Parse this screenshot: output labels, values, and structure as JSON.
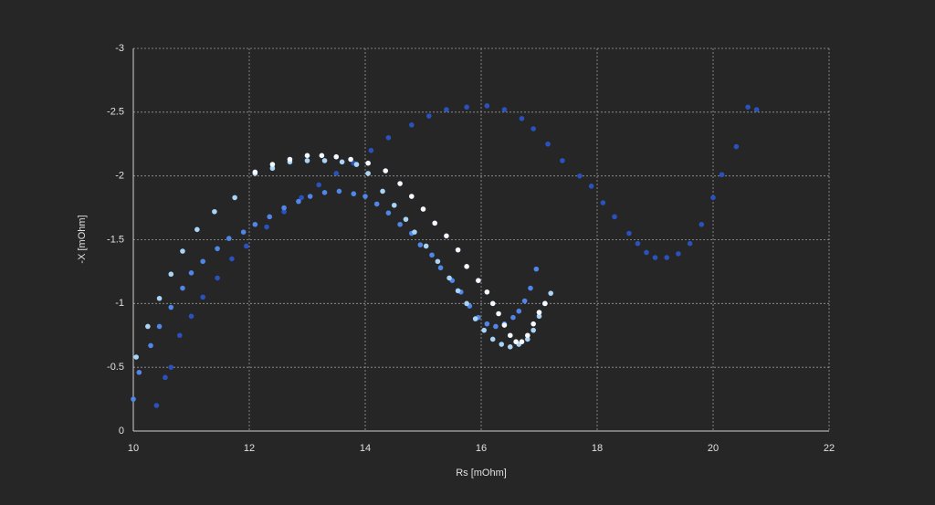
{
  "chart_data": {
    "type": "scatter",
    "x_label": "Rs [mOhm]",
    "y_label": "-X [mOhm]",
    "xlim": [
      10,
      22
    ],
    "xticks": [
      10,
      12,
      14,
      16,
      18,
      20,
      22
    ],
    "ylim": [
      0,
      -3
    ],
    "yticks": [
      0,
      -0.5,
      -1,
      -1.5,
      -2,
      -2.5,
      -3
    ],
    "grid": true,
    "series": [
      {
        "color": "#2a52be",
        "x": [
          10.4,
          10.55,
          10.65,
          10.8,
          11.0,
          11.2,
          11.45,
          11.7,
          11.95,
          12.3,
          12.6,
          12.9,
          13.2,
          13.5,
          13.8,
          14.1,
          14.4,
          14.8,
          15.1,
          15.4,
          15.75,
          16.1,
          16.4,
          16.7,
          16.9,
          17.15,
          17.4,
          17.7,
          17.9,
          18.1,
          18.3,
          18.55,
          18.7,
          18.85,
          19.0,
          19.2,
          19.4,
          19.6,
          19.8,
          20.0,
          20.15,
          20.4,
          20.6,
          20.75
        ],
        "values": [
          -0.2,
          -0.42,
          -0.5,
          -0.75,
          -0.9,
          -1.05,
          -1.2,
          -1.35,
          -1.45,
          -1.6,
          -1.72,
          -1.83,
          -1.93,
          -2.02,
          -2.1,
          -2.2,
          -2.3,
          -2.4,
          -2.47,
          -2.52,
          -2.54,
          -2.55,
          -2.52,
          -2.45,
          -2.37,
          -2.25,
          -2.12,
          -2.0,
          -1.92,
          -1.79,
          -1.68,
          -1.55,
          -1.47,
          -1.4,
          -1.36,
          -1.36,
          -1.39,
          -1.47,
          -1.62,
          -1.83,
          -2.01,
          -2.23,
          -2.54,
          -2.52
        ]
      },
      {
        "color": "#4f86e8",
        "x": [
          10.0,
          10.1,
          10.3,
          10.45,
          10.65,
          10.85,
          11.0,
          11.2,
          11.45,
          11.65,
          11.9,
          12.1,
          12.35,
          12.6,
          12.85,
          13.05,
          13.3,
          13.55,
          13.8,
          14.0,
          14.2,
          14.4,
          14.6,
          14.8,
          14.95,
          15.15,
          15.3,
          15.5,
          15.65,
          15.8,
          15.95,
          16.1,
          16.25,
          16.4,
          16.55,
          16.65,
          16.75,
          16.85,
          16.95
        ],
        "values": [
          -0.25,
          -0.46,
          -0.67,
          -0.82,
          -0.97,
          -1.12,
          -1.24,
          -1.33,
          -1.43,
          -1.51,
          -1.56,
          -1.62,
          -1.68,
          -1.75,
          -1.8,
          -1.84,
          -1.87,
          -1.88,
          -1.86,
          -1.84,
          -1.78,
          -1.71,
          -1.62,
          -1.55,
          -1.46,
          -1.38,
          -1.28,
          -1.18,
          -1.09,
          -0.98,
          -0.89,
          -0.84,
          -0.82,
          -0.84,
          -0.89,
          -0.94,
          -1.02,
          -1.12,
          -1.27
        ]
      },
      {
        "color": "#a9d4f5",
        "x": [
          10.05,
          10.25,
          10.45,
          10.65,
          10.85,
          11.1,
          11.4,
          11.75,
          12.1,
          12.4,
          12.7,
          13.0,
          13.3,
          13.6,
          13.85,
          14.05,
          14.3,
          14.5,
          14.7,
          14.85,
          15.05,
          15.25,
          15.45,
          15.6,
          15.75,
          15.9,
          16.05,
          16.2,
          16.35,
          16.5,
          16.65,
          16.8,
          16.9,
          17.0,
          17.1,
          17.2
        ],
        "values": [
          -0.58,
          -0.82,
          -1.04,
          -1.23,
          -1.41,
          -1.58,
          -1.72,
          -1.83,
          -2.02,
          -2.06,
          -2.11,
          -2.12,
          -2.12,
          -2.11,
          -2.09,
          -2.02,
          -1.88,
          -1.77,
          -1.66,
          -1.56,
          -1.45,
          -1.33,
          -1.2,
          -1.1,
          -1.0,
          -0.88,
          -0.79,
          -0.72,
          -0.68,
          -0.66,
          -0.68,
          -0.72,
          -0.79,
          -0.9,
          -1.0,
          -1.08
        ]
      },
      {
        "color": "#f4f8ff",
        "x": [
          12.1,
          12.4,
          12.7,
          13.0,
          13.25,
          13.5,
          13.75,
          14.05,
          14.35,
          14.6,
          14.8,
          15.0,
          15.2,
          15.4,
          15.6,
          15.75,
          15.95,
          16.1,
          16.2,
          16.3,
          16.4,
          16.5,
          16.6,
          16.7,
          16.8,
          16.9,
          17.0,
          17.1
        ],
        "values": [
          -2.03,
          -2.09,
          -2.13,
          -2.16,
          -2.16,
          -2.15,
          -2.13,
          -2.1,
          -2.04,
          -1.94,
          -1.84,
          -1.74,
          -1.63,
          -1.53,
          -1.42,
          -1.29,
          -1.18,
          -1.09,
          -1.0,
          -0.92,
          -0.83,
          -0.75,
          -0.7,
          -0.7,
          -0.75,
          -0.84,
          -0.93,
          -1.0
        ]
      }
    ]
  }
}
